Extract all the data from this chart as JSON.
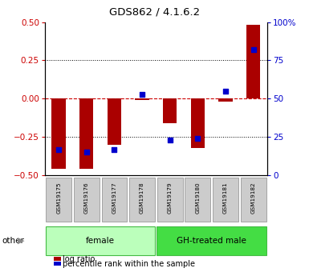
{
  "title": "GDS862 / 4.1.6.2",
  "samples": [
    "GSM19175",
    "GSM19176",
    "GSM19177",
    "GSM19178",
    "GSM19179",
    "GSM19180",
    "GSM19181",
    "GSM19182"
  ],
  "log_ratio": [
    -0.46,
    -0.46,
    -0.3,
    -0.01,
    -0.16,
    -0.32,
    -0.02,
    0.48
  ],
  "percentile_rank": [
    17,
    15,
    17,
    53,
    23,
    24,
    55,
    82
  ],
  "groups": [
    {
      "label": "female",
      "start": 0,
      "end": 4,
      "color": "#bbffbb",
      "edgecolor": "#44bb44"
    },
    {
      "label": "GH-treated male",
      "start": 4,
      "end": 8,
      "color": "#44dd44",
      "edgecolor": "#44bb44"
    }
  ],
  "ylim": [
    -0.5,
    0.5
  ],
  "y2lim": [
    0,
    100
  ],
  "yticks_left": [
    -0.5,
    -0.25,
    0,
    0.25,
    0.5
  ],
  "yticks_right": [
    0,
    25,
    50,
    75,
    100
  ],
  "bar_color": "#aa0000",
  "dot_color": "#0000cc",
  "zero_line_color": "#cc0000",
  "bg_color": "#ffffff",
  "sample_box_color": "#cccccc",
  "sample_box_edge": "#888888"
}
